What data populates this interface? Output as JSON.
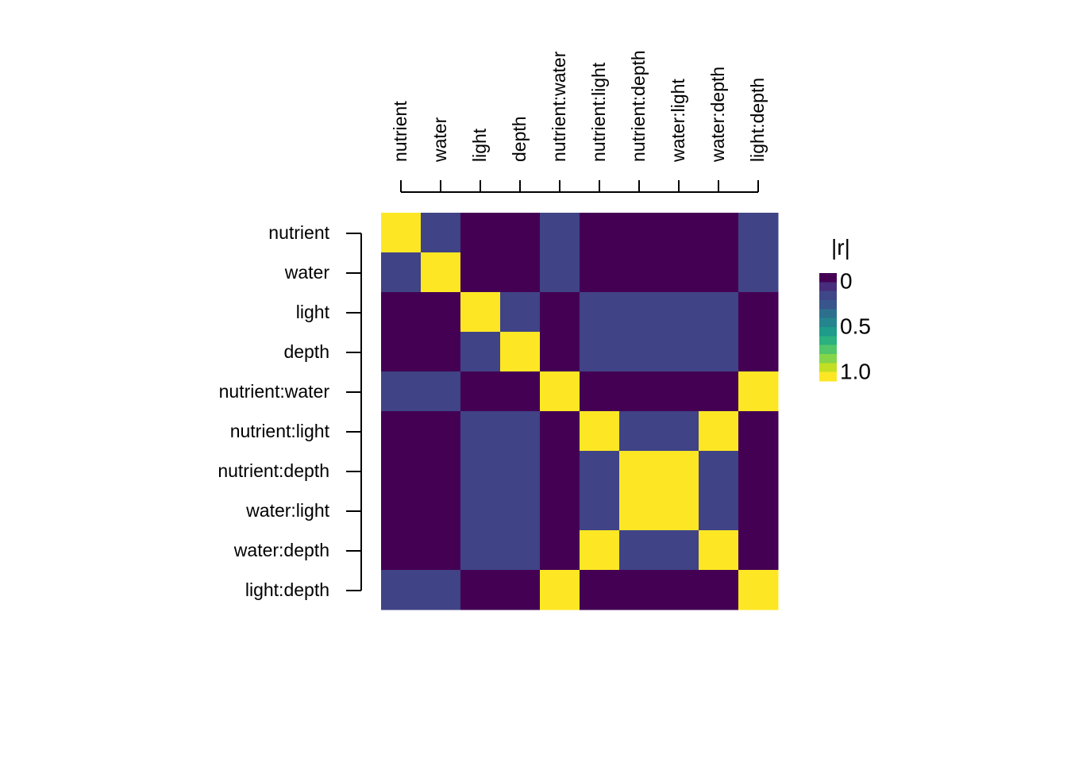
{
  "chart_data": {
    "type": "heatmap",
    "variables": [
      "nutrient",
      "water",
      "light",
      "depth",
      "nutrient:water",
      "nutrient:light",
      "nutrient:depth",
      "water:light",
      "water:depth",
      "light:depth"
    ],
    "values": [
      [
        1.0,
        0.2,
        0.0,
        0.0,
        0.2,
        0.0,
        0.0,
        0.0,
        0.0,
        0.2
      ],
      [
        0.2,
        1.0,
        0.0,
        0.0,
        0.2,
        0.0,
        0.0,
        0.0,
        0.0,
        0.2
      ],
      [
        0.0,
        0.0,
        1.0,
        0.2,
        0.0,
        0.2,
        0.2,
        0.2,
        0.2,
        0.0
      ],
      [
        0.0,
        0.0,
        0.2,
        1.0,
        0.0,
        0.2,
        0.2,
        0.2,
        0.2,
        0.0
      ],
      [
        0.2,
        0.2,
        0.0,
        0.0,
        1.0,
        0.0,
        0.0,
        0.0,
        0.0,
        1.0
      ],
      [
        0.0,
        0.0,
        0.2,
        0.2,
        0.0,
        1.0,
        0.2,
        0.2,
        1.0,
        0.0
      ],
      [
        0.0,
        0.0,
        0.2,
        0.2,
        0.0,
        0.2,
        1.0,
        1.0,
        0.2,
        0.0
      ],
      [
        0.0,
        0.0,
        0.2,
        0.2,
        0.0,
        0.2,
        1.0,
        1.0,
        0.2,
        0.0
      ],
      [
        0.0,
        0.0,
        0.2,
        0.2,
        0.0,
        1.0,
        0.2,
        0.2,
        1.0,
        0.0
      ],
      [
        0.2,
        0.2,
        0.0,
        0.0,
        1.0,
        0.0,
        0.0,
        0.0,
        0.0,
        1.0
      ]
    ],
    "color_scale": {
      "name": "viridis",
      "range": [
        0,
        1
      ],
      "stops": [
        "#440154",
        "#472D7B",
        "#3B528B",
        "#2C728E",
        "#21908C",
        "#27AD81",
        "#5DC863",
        "#AADC32",
        "#FDE725"
      ]
    },
    "legend": {
      "title": "|r|",
      "labels": [
        "0",
        "0.5",
        "1.0"
      ],
      "swatches": [
        "#440154",
        "#472D7B",
        "#3F4788",
        "#39568C",
        "#2D708E",
        "#25858E",
        "#1E9B8A",
        "#2BB07F",
        "#51C56A",
        "#85D54A",
        "#C2DF23",
        "#FDE725"
      ],
      "placement": "right"
    }
  }
}
